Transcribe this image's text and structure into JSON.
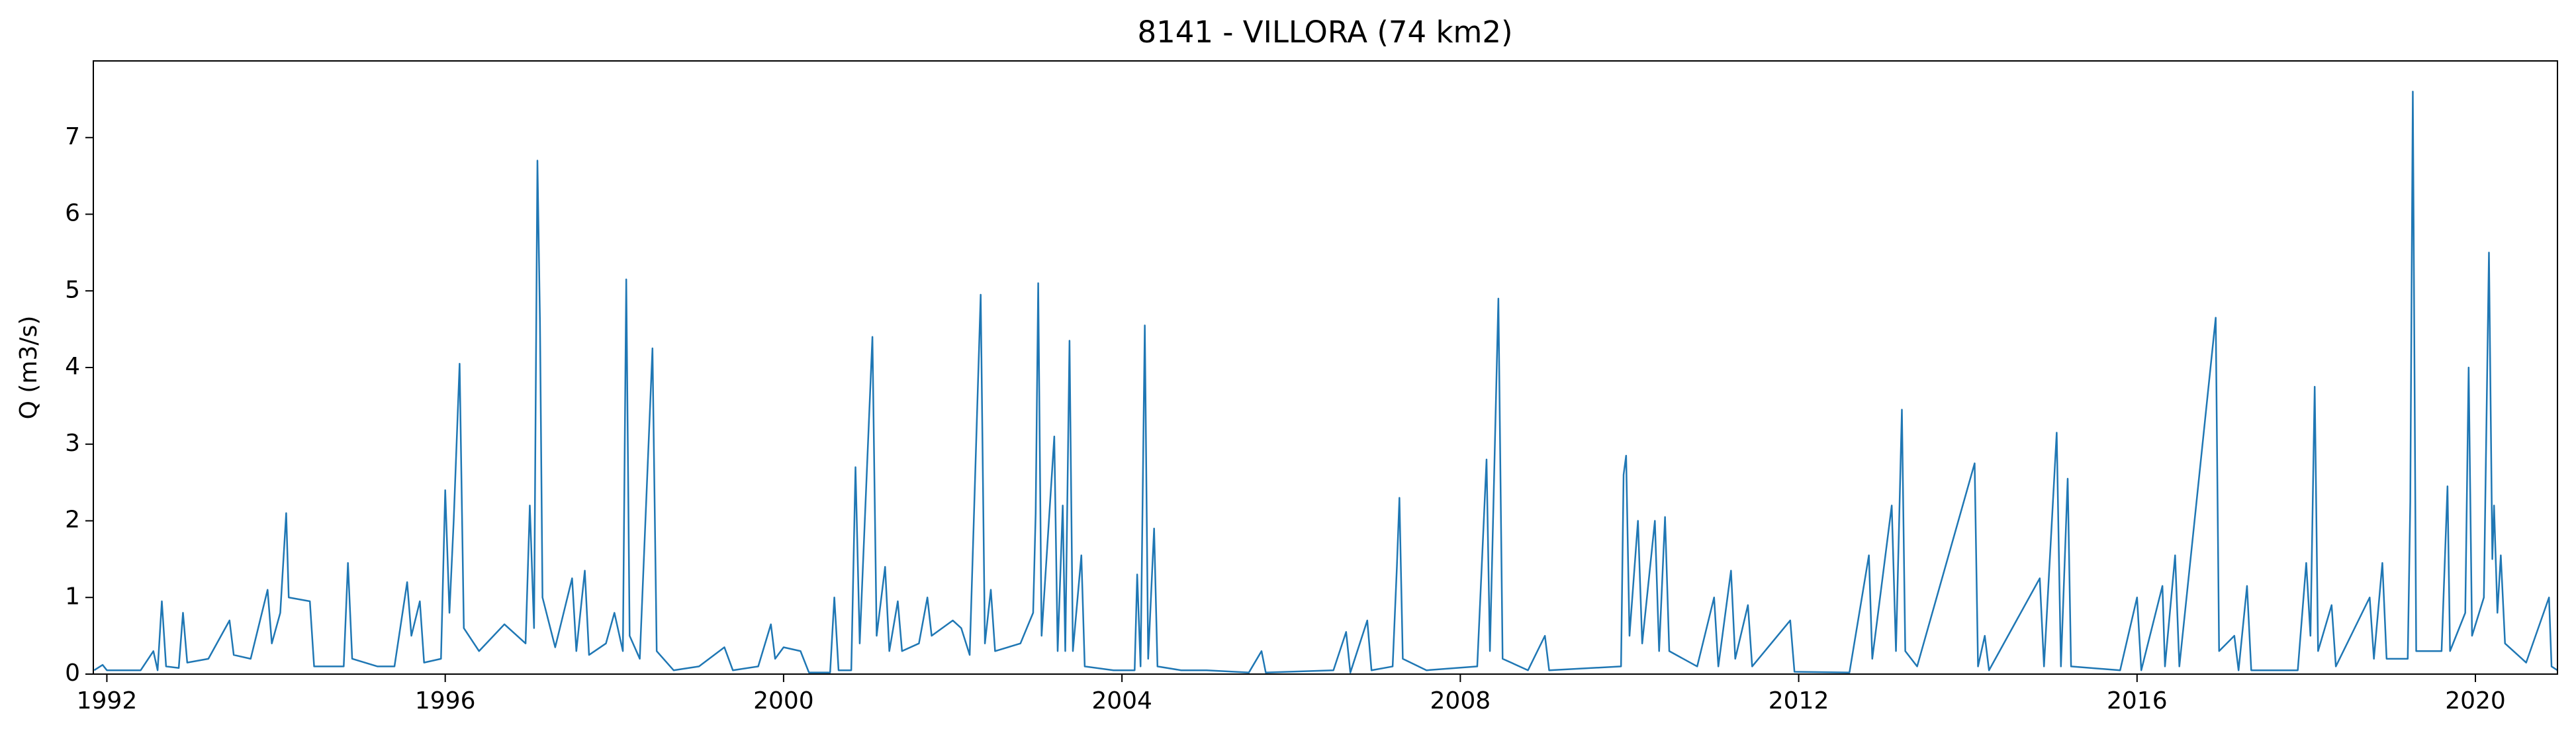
{
  "chart_data": {
    "type": "line",
    "title": "8141 - VILLORA (74 km2)",
    "ylabel": "Q (m3/s)",
    "color": "#1f77b4",
    "xlim": [
      1991.84,
      2020.97
    ],
    "xticks": [
      1992,
      1996,
      2000,
      2004,
      2008,
      2012,
      2016,
      2020
    ],
    "ylim": [
      0,
      8
    ],
    "yticks": [
      0,
      1,
      2,
      3,
      4,
      5,
      6,
      7
    ],
    "grid": false,
    "x": [
      1991.85,
      1991.95,
      1992.0,
      1992.4,
      1992.55,
      1992.6,
      1992.65,
      1992.7,
      1992.85,
      1992.9,
      1992.95,
      1993.2,
      1993.45,
      1993.5,
      1993.7,
      1993.9,
      1993.95,
      1994.05,
      1994.12,
      1994.15,
      1994.4,
      1994.45,
      1994.8,
      1994.85,
      1994.9,
      1995.2,
      1995.4,
      1995.55,
      1995.6,
      1995.7,
      1995.75,
      1995.95,
      1996.0,
      1996.05,
      1996.1,
      1996.17,
      1996.22,
      1996.4,
      1996.7,
      1996.95,
      1997.0,
      1997.05,
      1997.09,
      1997.12,
      1997.15,
      1997.3,
      1997.5,
      1997.55,
      1997.65,
      1997.7,
      1997.9,
      1998.0,
      1998.1,
      1998.14,
      1998.18,
      1998.3,
      1998.45,
      1998.5,
      1998.7,
      1999.0,
      1999.3,
      1999.4,
      1999.7,
      1999.85,
      1999.9,
      2000.0,
      2000.2,
      2000.3,
      2000.55,
      2000.6,
      2000.65,
      2000.8,
      2000.85,
      2000.9,
      2001.05,
      2001.1,
      2001.2,
      2001.25,
      2001.35,
      2001.4,
      2001.6,
      2001.7,
      2001.75,
      2002.0,
      2002.1,
      2002.2,
      2002.33,
      2002.38,
      2002.45,
      2002.5,
      2002.8,
      2002.95,
      2002.98,
      2003.01,
      2003.05,
      2003.2,
      2003.24,
      2003.3,
      2003.33,
      2003.38,
      2003.42,
      2003.52,
      2003.56,
      2003.9,
      2004.15,
      2004.18,
      2004.22,
      2004.27,
      2004.31,
      2004.38,
      2004.42,
      2004.7,
      2005.0,
      2005.5,
      2005.65,
      2005.7,
      2006.5,
      2006.65,
      2006.7,
      2006.9,
      2006.95,
      2007.2,
      2007.25,
      2007.28,
      2007.32,
      2007.6,
      2008.2,
      2008.31,
      2008.35,
      2008.45,
      2008.5,
      2008.8,
      2009.0,
      2009.05,
      2009.9,
      2009.93,
      2009.96,
      2010.0,
      2010.1,
      2010.15,
      2010.3,
      2010.35,
      2010.42,
      2010.47,
      2010.8,
      2011.0,
      2011.05,
      2011.2,
      2011.25,
      2011.4,
      2011.45,
      2011.9,
      2011.95,
      2012.6,
      2012.83,
      2012.87,
      2013.1,
      2013.15,
      2013.22,
      2013.26,
      2013.4,
      2014.08,
      2014.12,
      2014.2,
      2014.25,
      2014.85,
      2014.9,
      2015.05,
      2015.1,
      2015.18,
      2015.22,
      2015.8,
      2016.0,
      2016.05,
      2016.3,
      2016.33,
      2016.45,
      2016.5,
      2016.93,
      2016.97,
      2017.15,
      2017.2,
      2017.3,
      2017.35,
      2017.9,
      2018.0,
      2018.05,
      2018.1,
      2018.14,
      2018.3,
      2018.35,
      2018.75,
      2018.8,
      2018.9,
      2018.95,
      2019.2,
      2019.23,
      2019.26,
      2019.3,
      2019.6,
      2019.67,
      2019.7,
      2019.88,
      2019.92,
      2019.96,
      2020.1,
      2020.16,
      2020.2,
      2020.22,
      2020.26,
      2020.3,
      2020.35,
      2020.6,
      2020.87,
      2020.9,
      2020.97
    ],
    "values": [
      0.05,
      0.12,
      0.05,
      0.05,
      0.3,
      0.05,
      0.95,
      0.1,
      0.08,
      0.8,
      0.15,
      0.2,
      0.7,
      0.25,
      0.2,
      1.1,
      0.4,
      0.8,
      2.1,
      1.0,
      0.95,
      0.1,
      0.1,
      1.45,
      0.2,
      0.1,
      0.1,
      1.2,
      0.5,
      0.95,
      0.15,
      0.2,
      2.4,
      0.8,
      2.0,
      4.05,
      0.6,
      0.3,
      0.65,
      0.4,
      2.2,
      0.6,
      6.7,
      4.6,
      1.0,
      0.35,
      1.25,
      0.3,
      1.35,
      0.25,
      0.4,
      0.8,
      0.3,
      5.15,
      0.5,
      0.2,
      4.25,
      0.3,
      0.05,
      0.1,
      0.35,
      0.05,
      0.1,
      0.65,
      0.2,
      0.35,
      0.3,
      0.02,
      0.02,
      1.0,
      0.05,
      0.05,
      2.7,
      0.4,
      4.4,
      0.5,
      1.4,
      0.3,
      0.95,
      0.3,
      0.4,
      1.0,
      0.5,
      0.7,
      0.6,
      0.25,
      4.95,
      0.4,
      1.1,
      0.3,
      0.4,
      0.8,
      2.1,
      5.1,
      0.5,
      3.1,
      0.3,
      2.2,
      0.3,
      4.35,
      0.3,
      1.55,
      0.1,
      0.05,
      0.05,
      1.3,
      0.1,
      4.55,
      0.2,
      1.9,
      0.1,
      0.05,
      0.05,
      0.02,
      0.3,
      0.02,
      0.05,
      0.55,
      0.02,
      0.7,
      0.05,
      0.1,
      1.4,
      2.3,
      0.2,
      0.05,
      0.1,
      2.8,
      0.3,
      4.9,
      0.2,
      0.05,
      0.5,
      0.05,
      0.1,
      2.6,
      2.85,
      0.5,
      2.0,
      0.4,
      2.0,
      0.3,
      2.05,
      0.3,
      0.1,
      1.0,
      0.1,
      1.35,
      0.2,
      0.9,
      0.1,
      0.7,
      0.03,
      0.02,
      1.55,
      0.2,
      2.2,
      0.3,
      3.45,
      0.3,
      0.1,
      2.75,
      0.1,
      0.5,
      0.05,
      1.25,
      0.1,
      3.15,
      0.1,
      2.55,
      0.1,
      0.05,
      1.0,
      0.05,
      1.15,
      0.1,
      1.55,
      0.1,
      4.65,
      0.3,
      0.5,
      0.05,
      1.15,
      0.05,
      0.05,
      1.45,
      0.5,
      3.75,
      0.3,
      0.9,
      0.1,
      1.0,
      0.2,
      1.45,
      0.2,
      0.2,
      2.25,
      7.6,
      0.3,
      0.3,
      2.45,
      0.3,
      0.8,
      4.0,
      0.5,
      1.0,
      5.5,
      1.5,
      2.2,
      0.8,
      1.55,
      0.4,
      0.15,
      1.0,
      0.1,
      0.05
    ]
  }
}
